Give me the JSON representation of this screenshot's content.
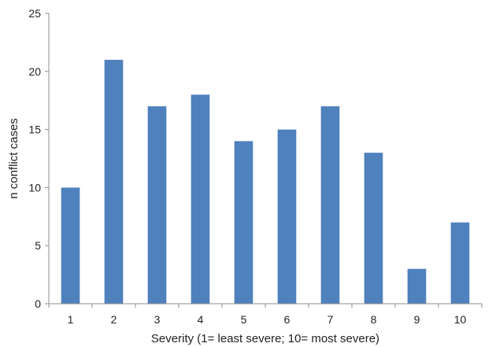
{
  "chart_data": {
    "type": "bar",
    "categories": [
      "1",
      "2",
      "3",
      "4",
      "5",
      "6",
      "7",
      "8",
      "9",
      "10"
    ],
    "values": [
      10,
      21,
      17,
      18,
      14,
      15,
      17,
      13,
      3,
      7
    ],
    "title": "",
    "xlabel": "Severity (1= least severe; 10= most severe)",
    "ylabel": "n conflict cases",
    "ylim": [
      0,
      25
    ],
    "yticks": [
      0,
      5,
      10,
      15,
      20,
      25
    ],
    "grid": false,
    "legend": "none",
    "bar_color": "#4f81bd"
  }
}
